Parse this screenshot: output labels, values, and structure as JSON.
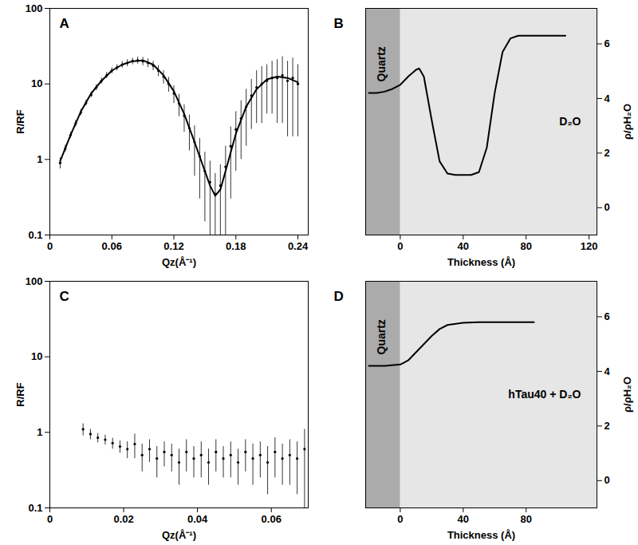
{
  "chart_data": [
    {
      "type": "scatter",
      "title": "A",
      "xlabel": "Qz(Å⁻¹)",
      "ylabel": "R/RF",
      "log": "y",
      "grid": false,
      "xlim": [
        0,
        0.25
      ],
      "xticks": [
        0,
        0.06,
        0.12,
        0.18,
        0.24
      ],
      "ylim": [
        0.1,
        100
      ],
      "yticks": [
        0.1,
        1,
        10,
        100
      ],
      "series": [
        {
          "type": "scatter",
          "marker": "circle",
          "color": "#000000",
          "x": [
            0.01,
            0.015,
            0.02,
            0.025,
            0.03,
            0.035,
            0.04,
            0.045,
            0.05,
            0.055,
            0.06,
            0.065,
            0.07,
            0.075,
            0.08,
            0.085,
            0.09,
            0.095,
            0.1,
            0.105,
            0.11,
            0.115,
            0.12,
            0.125,
            0.13,
            0.135,
            0.14,
            0.145,
            0.15,
            0.155,
            0.16,
            0.165,
            0.17,
            0.175,
            0.18,
            0.185,
            0.19,
            0.195,
            0.2,
            0.205,
            0.21,
            0.215,
            0.22,
            0.225,
            0.23,
            0.235,
            0.24
          ],
          "values": [
            0.9,
            1.4,
            2.1,
            3.0,
            4.2,
            5.6,
            7.2,
            9.0,
            11,
            13,
            15,
            16.5,
            18,
            19,
            20,
            20.5,
            20,
            19,
            17.5,
            15,
            12.5,
            10,
            7.5,
            5.5,
            3.8,
            2.6,
            1.7,
            1.1,
            0.7,
            0.5,
            0.35,
            0.45,
            0.8,
            1.5,
            2.5,
            3.5,
            5,
            7,
            9,
            10,
            11,
            12,
            12,
            13,
            11,
            12,
            10
          ],
          "errors": [
            0.15,
            0.15,
            0.2,
            0.3,
            0.4,
            0.5,
            0.6,
            0.8,
            1,
            1.2,
            1.4,
            1.5,
            1.8,
            2,
            2,
            2.2,
            2.5,
            2.5,
            2.5,
            2.5,
            2.5,
            2.2,
            2,
            1.8,
            1.5,
            1.3,
            1.1,
            0.8,
            0.55,
            0.45,
            0.3,
            0.4,
            0.7,
            1.2,
            1.8,
            2.5,
            3.5,
            4.5,
            6,
            7,
            7,
            8,
            9,
            10,
            9,
            10,
            8
          ]
        },
        {
          "type": "line",
          "color": "#000000",
          "x": [
            0.01,
            0.02,
            0.03,
            0.04,
            0.05,
            0.06,
            0.07,
            0.08,
            0.09,
            0.1,
            0.11,
            0.12,
            0.13,
            0.14,
            0.15,
            0.155,
            0.16,
            0.165,
            0.17,
            0.18,
            0.19,
            0.2,
            0.21,
            0.22,
            0.23,
            0.24
          ],
          "values": [
            0.95,
            2.1,
            4.3,
            7.5,
            11,
            15,
            18,
            20,
            20.5,
            18,
            13,
            8,
            4,
            1.7,
            0.7,
            0.45,
            0.33,
            0.4,
            0.7,
            2.2,
            5,
            8.5,
            11.5,
            12.5,
            12,
            10.5
          ]
        }
      ]
    },
    {
      "type": "line",
      "title": "B",
      "xlabel": "Thickness (Å)",
      "ylabel": "ρ/ρH₂O",
      "grid": false,
      "annotations": [
        "Quartz",
        "D₂O"
      ],
      "xlim": [
        -22,
        125
      ],
      "xticks": [
        0,
        40,
        80,
        120
      ],
      "ylim": [
        -1,
        7.3
      ],
      "yticks": [
        0,
        2,
        4,
        6
      ],
      "series": [
        {
          "type": "line",
          "color": "#000000",
          "x": [
            -20,
            -15,
            -10,
            -5,
            0,
            5,
            10,
            12,
            15,
            20,
            25,
            30,
            35,
            40,
            45,
            50,
            55,
            60,
            65,
            70,
            75,
            80,
            90,
            105
          ],
          "values": [
            4.2,
            4.2,
            4.25,
            4.35,
            4.5,
            4.8,
            5.05,
            5.1,
            4.8,
            3.2,
            1.7,
            1.25,
            1.2,
            1.2,
            1.2,
            1.3,
            2.2,
            4.2,
            5.7,
            6.2,
            6.3,
            6.3,
            6.3,
            6.3
          ]
        }
      ]
    },
    {
      "type": "scatter",
      "title": "C",
      "xlabel": "Qz(Å⁻¹)",
      "ylabel": "R/RF",
      "log": "y",
      "grid": false,
      "xlim": [
        0,
        0.07
      ],
      "xticks": [
        0,
        0.02,
        0.04,
        0.06
      ],
      "ylim": [
        0.1,
        100
      ],
      "yticks": [
        0.1,
        1,
        10,
        100
      ],
      "series": [
        {
          "type": "scatter",
          "marker": "circle",
          "color": "#000000",
          "x": [
            0.009,
            0.011,
            0.013,
            0.015,
            0.017,
            0.019,
            0.021,
            0.023,
            0.025,
            0.027,
            0.029,
            0.031,
            0.033,
            0.035,
            0.037,
            0.039,
            0.041,
            0.043,
            0.045,
            0.047,
            0.049,
            0.051,
            0.053,
            0.055,
            0.057,
            0.059,
            0.061,
            0.063,
            0.065,
            0.067,
            0.069
          ],
          "values": [
            1.1,
            0.95,
            0.85,
            0.8,
            0.72,
            0.65,
            0.6,
            0.7,
            0.5,
            0.6,
            0.45,
            0.55,
            0.5,
            0.4,
            0.55,
            0.45,
            0.5,
            0.4,
            0.55,
            0.45,
            0.5,
            0.4,
            0.55,
            0.45,
            0.5,
            0.4,
            0.55,
            0.45,
            0.5,
            0.45,
            0.6
          ],
          "errors": [
            0.2,
            0.15,
            0.12,
            0.12,
            0.12,
            0.12,
            0.15,
            0.25,
            0.2,
            0.2,
            0.2,
            0.2,
            0.2,
            0.2,
            0.25,
            0.2,
            0.25,
            0.2,
            0.25,
            0.2,
            0.25,
            0.2,
            0.25,
            0.25,
            0.25,
            0.25,
            0.3,
            0.25,
            0.3,
            0.3,
            0.5
          ]
        }
      ]
    },
    {
      "type": "line",
      "title": "D",
      "xlabel": "Thickness (Å)",
      "ylabel": "ρ/ρH₂O",
      "grid": false,
      "annotations": [
        "Quartz",
        "hTau40 + D₂O"
      ],
      "xlim": [
        -22,
        125
      ],
      "xticks": [
        0,
        40,
        80
      ],
      "ylim": [
        -1,
        7.3
      ],
      "yticks": [
        0,
        2,
        4,
        6
      ],
      "series": [
        {
          "type": "line",
          "color": "#000000",
          "x": [
            -20,
            -10,
            0,
            5,
            10,
            15,
            20,
            25,
            30,
            40,
            50,
            85
          ],
          "values": [
            4.2,
            4.2,
            4.25,
            4.4,
            4.7,
            5.0,
            5.3,
            5.55,
            5.7,
            5.78,
            5.8,
            5.8
          ]
        }
      ]
    }
  ]
}
